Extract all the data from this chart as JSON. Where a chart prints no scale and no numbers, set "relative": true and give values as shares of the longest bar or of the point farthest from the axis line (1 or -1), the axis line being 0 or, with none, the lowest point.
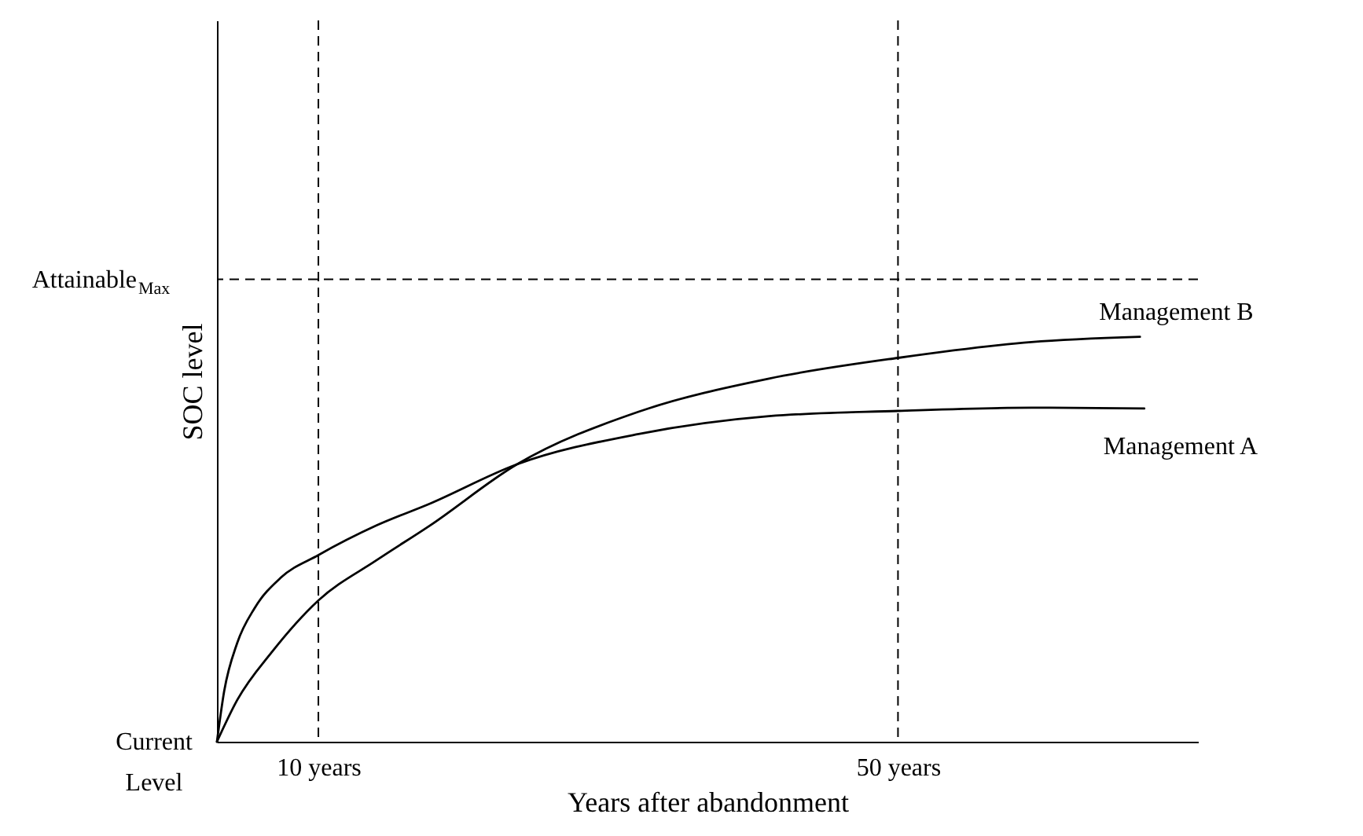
{
  "chart_data": {
    "type": "line",
    "relative": true,
    "xlabel": "Years after abandonment",
    "ylabel": "SOC level",
    "xlim": [
      3.0,
      70.7
    ],
    "xticks": [
      {
        "value": 10,
        "label": "10 years"
      },
      {
        "value": 50,
        "label": "50 years"
      }
    ],
    "series": [
      {
        "name": "Management A",
        "color": "#000000",
        "x": [
          3.0,
          3.5,
          4.4,
          5.6,
          7.4,
          10,
          14.0,
          17.7,
          23.7,
          32.1,
          41.1,
          50,
          59.2,
          67.0
        ],
        "values": [
          0,
          0.125,
          0.244,
          0.33,
          0.405,
          0.461,
          0.534,
          0.588,
          0.685,
          0.76,
          0.804,
          0.817,
          0.825,
          0.823
        ]
      },
      {
        "name": "Management B",
        "color": "#000000",
        "x": [
          3.0,
          4.4,
          6.8,
          10,
          14.0,
          17.7,
          23.7,
          32.1,
          41.1,
          50,
          59.2,
          66.7
        ],
        "values": [
          0,
          0.103,
          0.222,
          0.349,
          0.448,
          0.534,
          0.685,
          0.815,
          0.897,
          0.948,
          0.987,
          1.0
        ]
      }
    ],
    "ref_lines": [
      {
        "axis": "x",
        "value": 10,
        "label": null,
        "color": "#000000",
        "line_style": "dashed"
      },
      {
        "axis": "x",
        "value": 50,
        "label": null,
        "color": "#000000",
        "line_style": "dashed"
      },
      {
        "axis": "y",
        "value": 1.142,
        "label": "Attainable$_{Max}$",
        "color": "#000000",
        "line_style": "dashed"
      }
    ],
    "annotations": [
      "Current Level"
    ],
    "legend": false,
    "marker": "none",
    "line_style": "solid"
  }
}
